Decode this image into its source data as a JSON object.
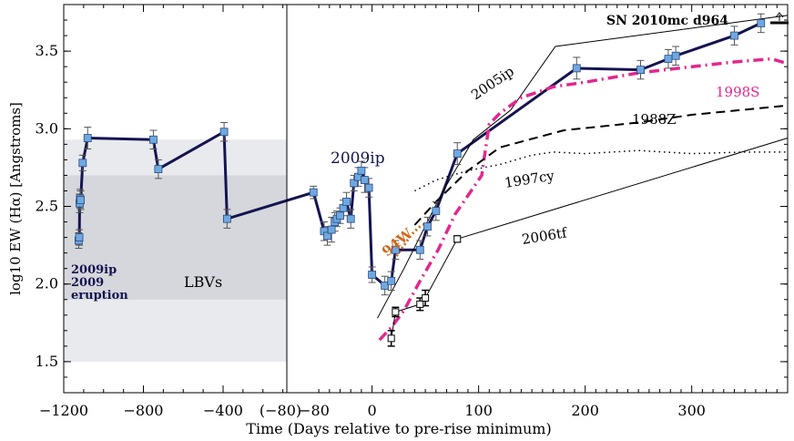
{
  "chart_data": {
    "type": "line",
    "xlabel": "Time (Days relative to pre-rise minimum)",
    "ylabel": "log10 EW (Hα) [Angstroms]",
    "ylim": [
      1.3,
      3.8
    ],
    "yticks": [
      1.5,
      2.0,
      2.5,
      3.0,
      3.5
    ],
    "left_panel": {
      "xlim": [
        -1200,
        -80
      ],
      "xticks": [
        -1200,
        -800,
        -400
      ],
      "end_tick_label": "(−80)"
    },
    "right_panel": {
      "xlim": [
        -80,
        390
      ],
      "xticks": [
        0,
        100,
        200,
        300
      ],
      "start_tick_label": "−80"
    },
    "bands": [
      {
        "name": "outer",
        "ymin": 1.5,
        "ymax": 2.93,
        "color": "#e9eaee"
      },
      {
        "name": "inner",
        "ymin": 1.9,
        "ymax": 2.7,
        "color": "#d6d7dc"
      }
    ],
    "annotations": {
      "lbv_label": "LBVs",
      "eruption_label": [
        "2009ip",
        "2009",
        "eruption"
      ],
      "sn2009ip_label": "2009ip",
      "sn2010mc_label": "SN 2010mc d964",
      "sn2005ip_label": "2005ip",
      "sn1998S_label": "1998S",
      "sn1988Z_label": "1988Z",
      "sn1997cy_label": "1997cy",
      "sn2006tf_label": "2006tf",
      "sn1994W_label": "94W"
    },
    "colors": {
      "sn2009ip": "#141450",
      "marker": "#6fa8e0",
      "sn1998S": "#e3278e",
      "sn1994W": "#d06a1e",
      "other": "#000000"
    },
    "series": [
      {
        "name": "2009ip",
        "panel": "left",
        "x": [
          -1125,
          -1122,
          -1120,
          -1118,
          -1115,
          -1105,
          -1080,
          -750,
          -725,
          -395,
          -380
        ],
        "y": [
          2.28,
          2.3,
          2.52,
          2.55,
          2.54,
          2.78,
          2.94,
          2.93,
          2.74,
          2.98,
          2.42
        ],
        "err": [
          0.05,
          0.05,
          0.06,
          0.06,
          0.06,
          0.05,
          0.07,
          0.06,
          0.06,
          0.06,
          0.06
        ]
      },
      {
        "name": "2009ip",
        "panel": "right",
        "x": [
          -55,
          -45,
          -42,
          -38,
          -35,
          -33,
          -30,
          -27,
          -24,
          -20,
          -17,
          -13,
          -10,
          -7,
          -3,
          0,
          12,
          18,
          22,
          45,
          52,
          60,
          80,
          192,
          252,
          278,
          285,
          340,
          365
        ],
        "y": [
          2.59,
          2.34,
          2.31,
          2.35,
          2.4,
          2.42,
          2.44,
          2.49,
          2.53,
          2.42,
          2.65,
          2.69,
          2.73,
          2.67,
          2.62,
          2.06,
          1.99,
          2.02,
          2.22,
          2.22,
          2.37,
          2.47,
          2.84,
          3.39,
          3.38,
          3.45,
          3.47,
          3.6,
          3.68
        ],
        "err": [
          0.04,
          0.06,
          0.06,
          0.08,
          0.06,
          0.05,
          0.05,
          0.05,
          0.06,
          0.06,
          0.05,
          0.06,
          0.06,
          0.08,
          0.06,
          0.05,
          0.06,
          0.06,
          0.06,
          0.06,
          0.06,
          0.06,
          0.07,
          0.07,
          0.06,
          0.06,
          0.06,
          0.06,
          0.06
        ]
      },
      {
        "name": "2005ip",
        "x": [
          5,
          30,
          65,
          95,
          130,
          172,
          390
        ],
        "y": [
          1.78,
          2.1,
          2.58,
          2.93,
          3.12,
          3.53,
          3.73
        ]
      },
      {
        "name": "1998S",
        "x": [
          7,
          18,
          30,
          45,
          62,
          78,
          95,
          103,
          105,
          110,
          120,
          140,
          170,
          200,
          250,
          300,
          340,
          375,
          390
        ],
        "y": [
          1.64,
          1.72,
          1.83,
          2.02,
          2.22,
          2.45,
          2.62,
          2.7,
          2.8,
          3.03,
          3.1,
          3.2,
          3.27,
          3.3,
          3.36,
          3.4,
          3.43,
          3.45,
          3.42
        ]
      },
      {
        "name": "1988Z",
        "x": [
          40,
          60,
          90,
          120,
          180,
          250,
          300,
          390
        ],
        "y": [
          2.38,
          2.53,
          2.73,
          2.88,
          2.99,
          3.04,
          3.09,
          3.15
        ]
      },
      {
        "name": "1997cy",
        "x": [
          40,
          60,
          90,
          120,
          150,
          170,
          200,
          250,
          300,
          350,
          390
        ],
        "y": [
          2.6,
          2.67,
          2.73,
          2.77,
          2.83,
          2.85,
          2.84,
          2.86,
          2.84,
          2.85,
          2.85
        ]
      },
      {
        "name": "2006tf",
        "x": [
          18,
          22,
          45,
          50,
          80,
          390
        ],
        "y": [
          1.65,
          1.82,
          1.87,
          1.91,
          2.29,
          2.94
        ],
        "err": [
          0.05,
          0.03,
          0.04,
          0.05,
          0.02,
          null
        ]
      },
      {
        "name": "1994W",
        "x": [
          23,
          29,
          35,
          40,
          45,
          50
        ],
        "y": [
          2.18,
          2.24,
          2.3,
          2.34,
          2.37,
          2.39
        ]
      }
    ]
  }
}
